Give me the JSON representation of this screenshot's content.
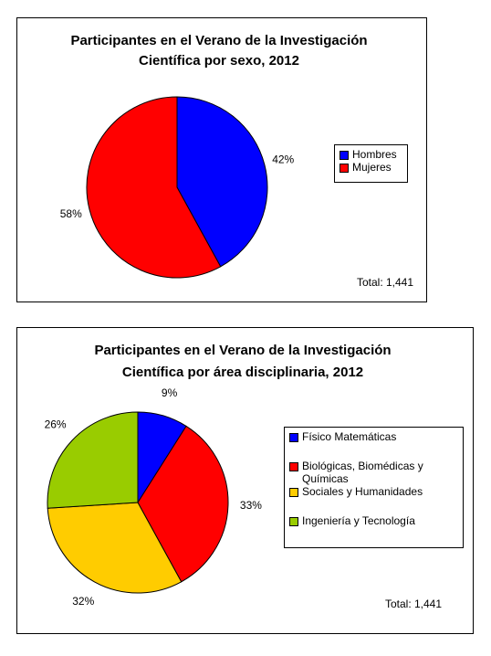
{
  "chart_data": [
    {
      "type": "pie",
      "title": [
        "Participantes en el Verano de la Investigación",
        "Científica por sexo, 2012"
      ],
      "categories": [
        "Hombres",
        "Mujeres"
      ],
      "values": [
        42,
        58
      ],
      "value_labels": [
        "42%",
        "58%"
      ],
      "colors": [
        "#0000ff",
        "#ff0000"
      ],
      "annotation": "Total: 1,441"
    },
    {
      "type": "pie",
      "title": [
        "Participantes en el Verano de la Investigación",
        "Científica por área disciplinaria, 2012"
      ],
      "categories": [
        "Físico Matemáticas",
        "Biológicas, Biomédicas y Químicas",
        "Sociales y Humanidades",
        "Ingeniería y Tecnología"
      ],
      "values": [
        9,
        33,
        32,
        26
      ],
      "value_labels": [
        "9%",
        "33%",
        "32%",
        "26%"
      ],
      "colors": [
        "#0000ff",
        "#ff0000",
        "#ffcc00",
        "#99cc00"
      ],
      "annotation": "Total: 1,441"
    }
  ]
}
